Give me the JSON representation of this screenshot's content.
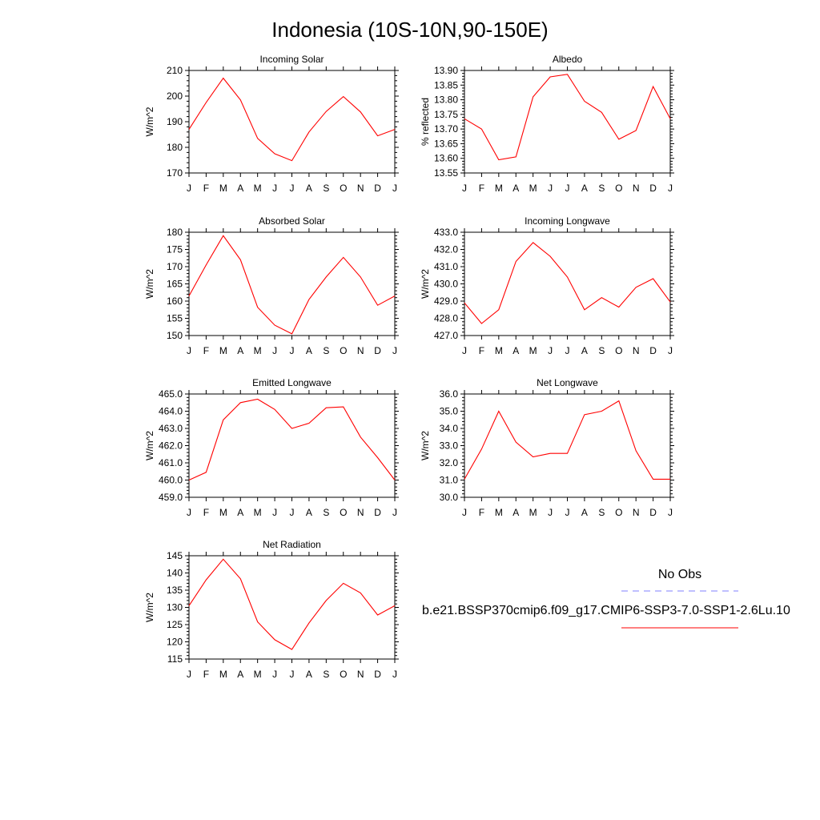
{
  "page_title": "Indonesia (10S-10N,90-150E)",
  "month_labels": [
    "J",
    "F",
    "M",
    "A",
    "M",
    "J",
    "J",
    "A",
    "S",
    "O",
    "N",
    "D",
    "J"
  ],
  "line_color": "#ff0000",
  "obs_color": "#8080ff",
  "legend": {
    "obs_label": "No Obs",
    "model_label": "b.e21.BSSP370cmip6.f09_g17.CMIP6-SSP3-7.0-SSP1-2.6Lu.10"
  },
  "chart_data": [
    {
      "type": "line",
      "title": "Incoming Solar",
      "ylabel": "W/m^2",
      "ylim": [
        170,
        210
      ],
      "yticks": [
        "170",
        "180",
        "190",
        "200",
        "210"
      ],
      "categories": [
        "J",
        "F",
        "M",
        "A",
        "M",
        "J",
        "J",
        "A",
        "S",
        "O",
        "N",
        "D",
        "J"
      ],
      "values": [
        187,
        197.5,
        207,
        198.5,
        183.5,
        177.5,
        174.8,
        186,
        194,
        199.8,
        193.8,
        184.5,
        187
      ]
    },
    {
      "type": "line",
      "title": "Albedo",
      "ylabel": "% reflected",
      "ylim": [
        13.55,
        13.9
      ],
      "yticks": [
        "13.55",
        "13.60",
        "13.65",
        "13.70",
        "13.75",
        "13.80",
        "13.85",
        "13.90"
      ],
      "categories": [
        "J",
        "F",
        "M",
        "A",
        "M",
        "J",
        "J",
        "A",
        "S",
        "O",
        "N",
        "D",
        "J"
      ],
      "values": [
        13.735,
        13.7,
        13.595,
        13.605,
        13.81,
        13.878,
        13.887,
        13.795,
        13.757,
        13.665,
        13.695,
        13.845,
        13.735
      ]
    },
    {
      "type": "line",
      "title": "Absorbed Solar",
      "ylabel": "W/m^2",
      "ylim": [
        150,
        180
      ],
      "yticks": [
        "150",
        "155",
        "160",
        "165",
        "170",
        "175",
        "180"
      ],
      "categories": [
        "J",
        "F",
        "M",
        "A",
        "M",
        "J",
        "J",
        "A",
        "S",
        "O",
        "N",
        "D",
        "J"
      ],
      "values": [
        161.5,
        170.5,
        179,
        172,
        158.2,
        153,
        150.5,
        160.5,
        167,
        172.7,
        167,
        158.8,
        161.5
      ]
    },
    {
      "type": "line",
      "title": "Incoming Longwave",
      "ylabel": "W/m^2",
      "ylim": [
        427.0,
        433.0
      ],
      "yticks": [
        "427.0",
        "428.0",
        "429.0",
        "430.0",
        "431.0",
        "432.0",
        "433.0"
      ],
      "categories": [
        "J",
        "F",
        "M",
        "A",
        "M",
        "J",
        "J",
        "A",
        "S",
        "O",
        "N",
        "D",
        "J"
      ],
      "values": [
        428.9,
        427.7,
        428.5,
        431.3,
        432.4,
        431.6,
        430.4,
        428.5,
        429.2,
        428.65,
        429.8,
        430.3,
        428.95
      ]
    },
    {
      "type": "line",
      "title": "Emitted Longwave",
      "ylabel": "W/m^2",
      "ylim": [
        459.0,
        465.0
      ],
      "yticks": [
        "459.0",
        "460.0",
        "461.0",
        "462.0",
        "463.0",
        "464.0",
        "465.0"
      ],
      "categories": [
        "J",
        "F",
        "M",
        "A",
        "M",
        "J",
        "J",
        "A",
        "S",
        "O",
        "N",
        "D",
        "J"
      ],
      "values": [
        460.0,
        460.45,
        463.5,
        464.5,
        464.7,
        464.1,
        463.0,
        463.3,
        464.2,
        464.25,
        462.5,
        461.3,
        460.0
      ]
    },
    {
      "type": "line",
      "title": "Net Longwave",
      "ylabel": "W/m^2",
      "ylim": [
        30.0,
        36.0
      ],
      "yticks": [
        "30.0",
        "31.0",
        "32.0",
        "33.0",
        "34.0",
        "35.0",
        "36.0"
      ],
      "categories": [
        "J",
        "F",
        "M",
        "A",
        "M",
        "J",
        "J",
        "A",
        "S",
        "O",
        "N",
        "D",
        "J"
      ],
      "values": [
        31.05,
        32.8,
        35.0,
        33.2,
        32.35,
        32.55,
        32.55,
        34.8,
        35.0,
        35.6,
        32.7,
        31.05,
        31.05
      ]
    },
    {
      "type": "line",
      "title": "Net Radiation",
      "ylabel": "W/m^2",
      "ylim": [
        115,
        145
      ],
      "yticks": [
        "115",
        "120",
        "125",
        "130",
        "135",
        "140",
        "145"
      ],
      "categories": [
        "J",
        "F",
        "M",
        "A",
        "M",
        "J",
        "J",
        "A",
        "S",
        "O",
        "N",
        "D",
        "J"
      ],
      "values": [
        130.5,
        138,
        144,
        138.3,
        125.8,
        120.6,
        117.8,
        125.5,
        132,
        137,
        134.2,
        127.8,
        130.5
      ]
    }
  ]
}
